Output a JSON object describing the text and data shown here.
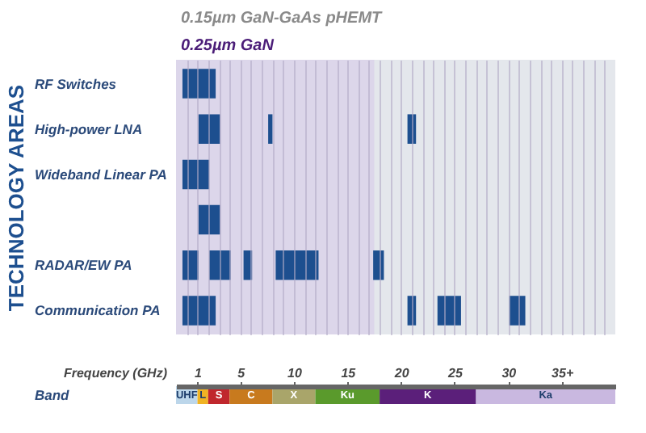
{
  "chart_data": [
    {
      "type": "bar",
      "orientation": "horizontal",
      "ylabel": "TECHNOLOGY AREAS",
      "categories": [
        "RF Switches",
        "High-power LNA",
        "Wideband Linear PA",
        null,
        "RADAR/EW PA",
        "Communication PA"
      ],
      "xlim": [
        -1,
        40
      ],
      "tick_labels": "y",
      "grid": "x",
      "xticks": [
        {
          "value": 0,
          "label": null
        },
        {
          "value": 1,
          "label": null
        },
        {
          "value": 2,
          "label": null
        },
        {
          "value": 3,
          "label": null
        },
        {
          "value": 4,
          "label": null
        },
        {
          "value": 5,
          "label": null
        },
        {
          "value": 6,
          "label": null
        },
        {
          "value": 7,
          "label": null
        },
        {
          "value": 8,
          "label": null
        },
        {
          "value": 9,
          "label": null
        },
        {
          "value": 10,
          "label": null
        },
        {
          "value": 11,
          "label": null
        },
        {
          "value": 12,
          "label": null
        },
        {
          "value": 13,
          "label": null
        },
        {
          "value": 14,
          "label": null
        },
        {
          "value": 15,
          "label": null
        },
        {
          "value": 16,
          "label": null
        },
        {
          "value": 17,
          "label": null
        },
        {
          "value": 18,
          "label": null
        },
        {
          "value": 19,
          "label": null
        },
        {
          "value": 20,
          "label": null
        },
        {
          "value": 21,
          "label": null
        },
        {
          "value": 22,
          "label": null
        },
        {
          "value": 23,
          "label": null
        },
        {
          "value": 24,
          "label": null
        },
        {
          "value": 25,
          "label": null
        },
        {
          "value": 26,
          "label": null
        },
        {
          "value": 27,
          "label": null
        },
        {
          "value": 28,
          "label": null
        },
        {
          "value": 29,
          "label": null
        },
        {
          "value": 30,
          "label": null
        },
        {
          "value": 31,
          "label": null
        },
        {
          "value": 32,
          "label": null
        },
        {
          "value": 33,
          "label": null
        },
        {
          "value": 34,
          "label": null
        },
        {
          "value": 35,
          "label": null
        },
        {
          "value": 36,
          "label": null
        },
        {
          "value": 37,
          "label": null
        },
        {
          "value": 38,
          "label": null
        },
        {
          "value": 39,
          "label": null
        }
      ],
      "bands": [
        {
          "axis": "x",
          "from": -1,
          "to": 40,
          "label": "0.15µm GaN-GaAs pHEMT",
          "color": "#e4e7ec"
        },
        {
          "axis": "x",
          "from": -1,
          "to": 17.5,
          "label": "0.25µm GaN",
          "color": "#dcd6ea"
        }
      ],
      "series": [
        {
          "color": "#1d4f8f",
          "base": [
            -0.4,
            1.1,
            -0.4,
            1.1,
            -0.4,
            -0.4
          ],
          "values": [
            3.1,
            2.0,
            2.5,
            2.0,
            1.5,
            3.1
          ]
        },
        {
          "color": "#1d4f8f",
          "base": [
            null,
            7.6,
            null,
            null,
            2.1,
            20.6
          ],
          "values": [
            null,
            0.4,
            null,
            null,
            2.0,
            0.8
          ]
        },
        {
          "color": "#1d4f8f",
          "base": [
            null,
            20.6,
            null,
            null,
            5.3,
            23.4
          ],
          "values": [
            null,
            0.8,
            null,
            null,
            0.8,
            2.2
          ]
        },
        {
          "color": "#1d4f8f",
          "base": [
            null,
            null,
            null,
            null,
            8.3,
            30.1
          ],
          "values": [
            null,
            null,
            null,
            null,
            4.0,
            1.5
          ]
        },
        {
          "color": "#1d4f8f",
          "base": [
            null,
            null,
            null,
            null,
            17.4,
            null
          ],
          "values": [
            null,
            null,
            null,
            null,
            1.0,
            null
          ]
        }
      ]
    },
    {
      "type": "bar",
      "orientation": "horizontal",
      "categories": [
        "Band"
      ],
      "xlabel": "Frequency (GHz)",
      "xlim": [
        -1,
        40
      ],
      "xticks": [
        1,
        5,
        10,
        15,
        20,
        25,
        30,
        {
          "value": 35,
          "label": "35+"
        }
      ],
      "series": [
        {
          "name": "UHF",
          "color": "#bcd6ea",
          "base": [
            -1
          ],
          "values": [
            2
          ]
        },
        {
          "name": "L",
          "color": "#f0b323",
          "base": [
            1
          ],
          "values": [
            1
          ]
        },
        {
          "name": "S",
          "color": "#c0272d",
          "base": [
            2
          ],
          "values": [
            2
          ]
        },
        {
          "name": "C",
          "color": "#c87a1e",
          "base": [
            4
          ],
          "values": [
            4
          ]
        },
        {
          "name": "X",
          "color": "#a9a56a",
          "base": [
            8
          ],
          "values": [
            4
          ]
        },
        {
          "name": "Ku",
          "color": "#5a9a2c",
          "base": [
            12
          ],
          "values": [
            6
          ]
        },
        {
          "name": "K",
          "color": "#5b1f7a",
          "base": [
            18
          ],
          "values": [
            9
          ]
        },
        {
          "name": "Ka",
          "color": "#c9b8e0",
          "base": [
            27
          ],
          "values": [
            13
          ]
        }
      ]
    }
  ]
}
